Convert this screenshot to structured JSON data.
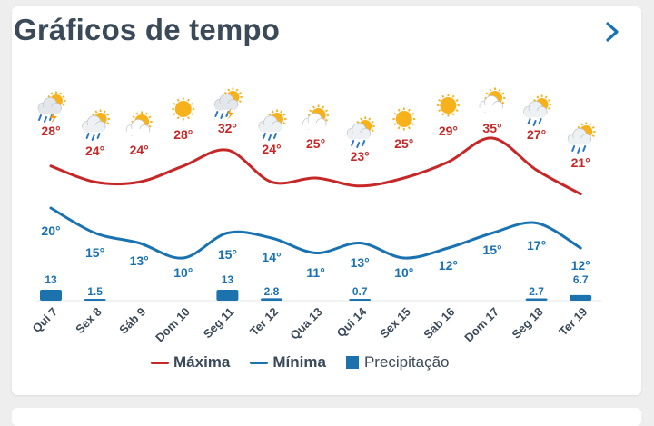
{
  "header": {
    "title": "Gráficos de tempo"
  },
  "colors": {
    "max": "#c62828",
    "min": "#1a73b0",
    "precip": "#1c72ad",
    "label_gray": "#3b4a59"
  },
  "legend": {
    "max_label": "Máxima",
    "min_label": "Mínima",
    "precip_label": "Precipitação"
  },
  "chart_data": {
    "type": "line",
    "categories": [
      "Qui 7",
      "Sex 8",
      "Sáb 9",
      "Dom 10",
      "Seg 11",
      "Ter 12",
      "Qua 13",
      "Qui 14",
      "Sex 15",
      "Sáb 16",
      "Dom 17",
      "Seg 18",
      "Ter 19"
    ],
    "icons": [
      "thunderstorm-icon",
      "rain-shower-icon",
      "partly-cloudy-icon",
      "sunny-icon",
      "thunderstorm-icon",
      "rain-shower-icon",
      "partly-cloudy-icon",
      "rain-shower-icon",
      "sunny-icon",
      "sunny-icon",
      "partly-cloudy-icon",
      "rain-shower-icon",
      "rain-shower-icon"
    ],
    "max": [
      28,
      24,
      24,
      28,
      32,
      24,
      25,
      23,
      25,
      29,
      35,
      27,
      21
    ],
    "min": [
      20,
      15,
      13,
      10,
      15,
      14,
      11,
      13,
      10,
      12,
      15,
      17,
      12
    ],
    "precip": [
      13,
      1.5,
      0,
      0,
      13,
      2.8,
      0,
      0.7,
      0,
      0,
      0,
      2.7,
      6.7
    ],
    "precip_labels": [
      "13",
      "1.5",
      "",
      "",
      "13",
      "2.8",
      "",
      "0.7",
      "",
      "",
      "",
      "2.7",
      "6.7"
    ],
    "max_labels": [
      "28°",
      "24°",
      "24°",
      "28°",
      "32°",
      "24°",
      "25°",
      "23°",
      "25°",
      "29°",
      "35°",
      "27°",
      "21°"
    ],
    "min_labels": [
      "20°",
      "15°",
      "13°",
      "10°",
      "15°",
      "14°",
      "11°",
      "13°",
      "10°",
      "12°",
      "15°",
      "17°",
      "12°"
    ]
  }
}
